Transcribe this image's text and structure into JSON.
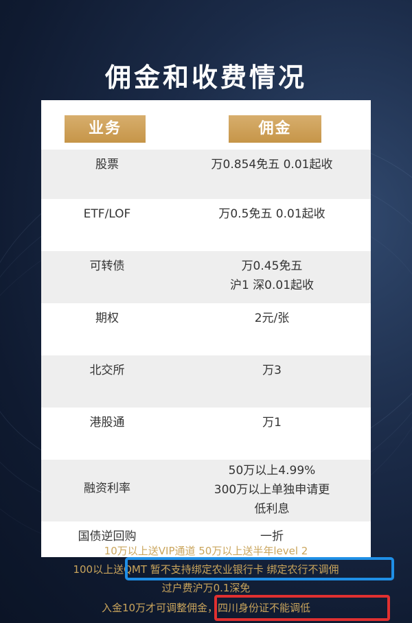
{
  "title": "佣金和收费情况",
  "table": {
    "headers": {
      "business": "业务",
      "commission": "佣金"
    },
    "rows": [
      {
        "business": "股票",
        "commission": [
          "万0.854免五 0.01起收"
        ]
      },
      {
        "business": "ETF/LOF",
        "commission": [
          "万0.5免五 0.01起收"
        ]
      },
      {
        "business": "可转债",
        "commission": [
          "万0.45免五",
          "沪1 深0.01起收"
        ]
      },
      {
        "business": "期权",
        "commission": [
          "2元/张"
        ]
      },
      {
        "business": "北交所",
        "commission": [
          "万3"
        ]
      },
      {
        "business": "港股通",
        "commission": [
          "万1"
        ]
      },
      {
        "business": "融资利率",
        "commission": [
          "50万以上4.99%",
          "300万以上单独申请更",
          "低利息"
        ]
      },
      {
        "business": "国债逆回购",
        "commission": [
          "一折"
        ]
      }
    ]
  },
  "notes": {
    "line1": "10万以上送VIP通道 50万以上送半年level 2",
    "line2": "100以上送QMT 暂不支持绑定农业银行卡 绑定农行不调佣",
    "line3": "过户费沪万0.1深免",
    "line4": "入金10万才可调整佣金，四川身份证不能调低"
  },
  "colors": {
    "background": "#0f1a30",
    "header_gold": "#c69548",
    "note_gold": "#caa55c",
    "row_grey": "#eeeeee",
    "highlight_blue": "#1f8fe6",
    "highlight_red": "#e03030"
  }
}
